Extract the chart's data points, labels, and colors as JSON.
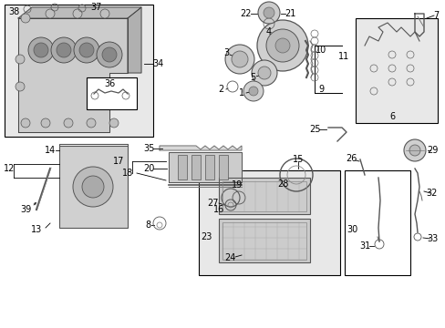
{
  "bg_color": "#ffffff",
  "fig_width": 4.89,
  "fig_height": 3.6,
  "dpi": 100,
  "lc": "#000000",
  "fs": 7.0
}
